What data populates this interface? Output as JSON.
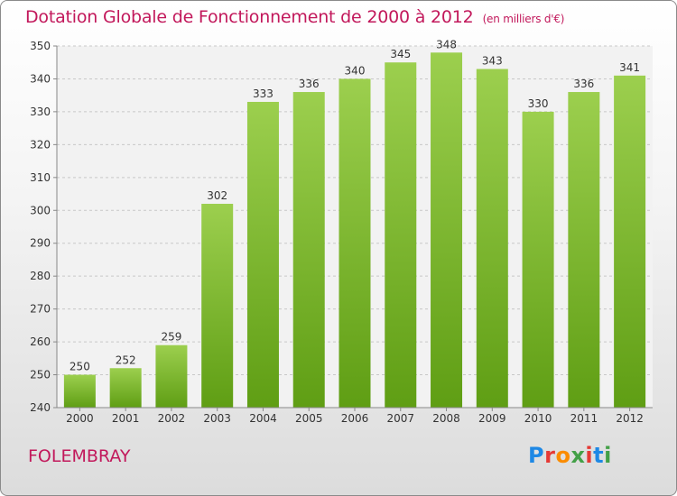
{
  "header": {
    "title": "Dotation Globale de Fonctionnement de 2000 à 2012",
    "unit": "(en milliers d'€)"
  },
  "footer": {
    "town": "FOLEMBRAY",
    "brand_letters": [
      "P",
      "r",
      "o",
      "x",
      "i",
      "t",
      "i"
    ],
    "brand_colors": [
      "#1e88e5",
      "#e53935",
      "#fb8c00",
      "#43a047",
      "#e53935",
      "#1e88e5",
      "#43a047"
    ]
  },
  "chart_data": {
    "type": "bar",
    "categories": [
      "2000",
      "2001",
      "2002",
      "2003",
      "2004",
      "2005",
      "2006",
      "2007",
      "2008",
      "2009",
      "2010",
      "2011",
      "2012"
    ],
    "values": [
      250,
      252,
      259,
      302,
      333,
      336,
      340,
      345,
      348,
      343,
      330,
      336,
      341
    ],
    "ylim": [
      240,
      350
    ],
    "yticks": [
      240,
      250,
      260,
      270,
      280,
      290,
      300,
      310,
      320,
      330,
      340,
      350
    ],
    "grid": true,
    "bar_color_top": "#9ccf4e",
    "bar_color_bottom": "#5f9e14"
  }
}
